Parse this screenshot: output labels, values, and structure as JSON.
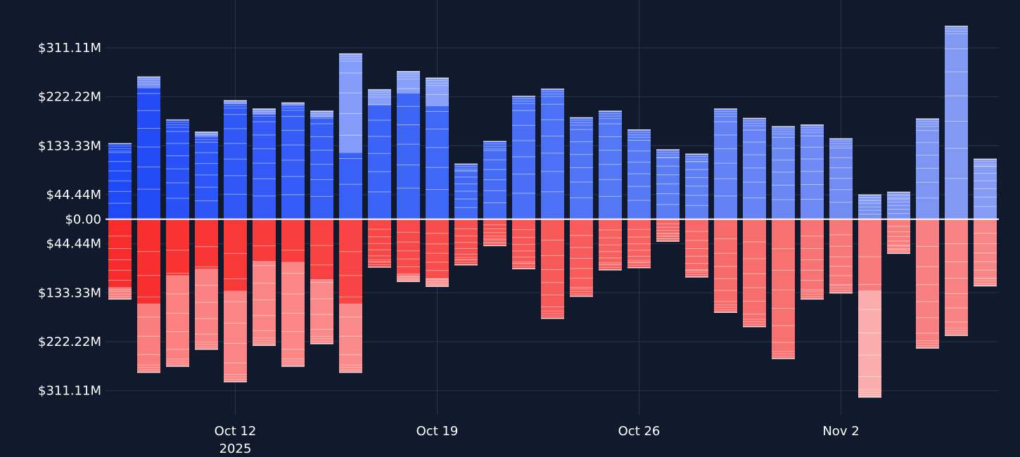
{
  "chart_data": {
    "type": "bar",
    "stacked": true,
    "grid": true,
    "legend": "none",
    "dates": [
      "2025-10-08",
      "2025-10-09",
      "2025-10-10",
      "2025-10-11",
      "2025-10-12",
      "2025-10-13",
      "2025-10-14",
      "2025-10-15",
      "2025-10-16",
      "2025-10-17",
      "2025-10-18",
      "2025-10-19",
      "2025-10-20",
      "2025-10-21",
      "2025-10-22",
      "2025-10-23",
      "2025-10-24",
      "2025-10-25",
      "2025-10-26",
      "2025-10-27",
      "2025-10-28",
      "2025-10-29",
      "2025-10-30",
      "2025-10-31",
      "2025-11-01",
      "2025-11-02",
      "2025-11-03",
      "2025-11-04",
      "2025-11-05",
      "2025-11-06",
      "2025-11-07"
    ],
    "positive_totals_musd": [
      137,
      258,
      180,
      158,
      215,
      200,
      211,
      196,
      300,
      235,
      268,
      256,
      100,
      141,
      223,
      236,
      184,
      196,
      162,
      126,
      118,
      200,
      183,
      168,
      171,
      146,
      44,
      49,
      182,
      350,
      109
    ],
    "negative_totals_musd": [
      -145,
      -278,
      -267,
      -236,
      -295,
      -229,
      -267,
      -226,
      -278,
      -87,
      -113,
      -122,
      -83,
      -48,
      -90,
      -180,
      -140,
      -92,
      -88,
      -40,
      -105,
      -169,
      -195,
      -253,
      -145,
      -134,
      -323,
      -62,
      -234,
      -211,
      -121
    ],
    "positive_colors": [
      "#1f4af5",
      "#244cf6",
      "#2a51f7",
      "#2d55f7",
      "#2f58f7",
      "#3459f7",
      "#365cf7",
      "#375ef7",
      "#3a61f7",
      "#3b63f7",
      "#3d66f7",
      "#4068f6",
      "#436af6",
      "#466cf6",
      "#4a6ff6",
      "#4c71f6",
      "#5074f5",
      "#5477f5",
      "#5879f5",
      "#5c7cf5",
      "#5f7ff5",
      "#6382f5",
      "#6884f4",
      "#6b87f4",
      "#6f8af4",
      "#738cf4",
      "#7790f4",
      "#7b92f4",
      "#7e95f4",
      "#8299f4",
      "#869bf3"
    ],
    "negative_colors": [
      "#f72d2d",
      "#f82f2f",
      "#f93232",
      "#f93636",
      "#f93838",
      "#f83b3b",
      "#f83e3e",
      "#f84141",
      "#f84444",
      "#f84747",
      "#f84a4a",
      "#f84d4d",
      "#f85050",
      "#f85353",
      "#f85656",
      "#f85959",
      "#f85c5c",
      "#f85f5f",
      "#f86262",
      "#f86565",
      "#f86868",
      "#f86b6b",
      "#f86e6e",
      "#f87171",
      "#f87474",
      "#f87777",
      "#f87a7a",
      "#f87d7d",
      "#f88080",
      "#f88383",
      "#f88686"
    ],
    "positive_split_fraction": [
      1,
      0.92,
      1,
      0.95,
      0.97,
      0.95,
      0.98,
      0.94,
      0.4,
      0.88,
      0.85,
      0.8,
      1,
      1,
      1,
      1,
      1,
      1,
      1,
      1,
      1,
      1,
      1,
      1,
      1,
      1,
      1,
      1,
      1,
      1,
      1
    ],
    "negative_split_fraction": [
      0.85,
      0.55,
      0.38,
      0.38,
      0.44,
      0.33,
      0.29,
      0.48,
      0.55,
      1,
      0.9,
      0.88,
      1,
      1,
      1,
      1,
      1,
      1,
      1,
      1,
      1,
      1,
      1,
      1,
      1,
      1,
      0.4,
      1,
      1,
      1,
      1
    ],
    "segments_per_bar": 7,
    "ylim": [
      -355,
      385
    ],
    "yticks": [
      -311.11,
      -222.22,
      -133.33,
      -44.44,
      0,
      44.44,
      133.33,
      222.22,
      311.11
    ],
    "ytick_labels": [
      "$311.11M",
      "$222.22M",
      "$133.33M",
      "$44.44M",
      "$0.00",
      "$44.44M",
      "$133.33M",
      "$222.22M",
      "$311.11M"
    ],
    "xticks": [
      {
        "date": "2025-10-12",
        "label": "Oct 12",
        "sublabel": "2025"
      },
      {
        "date": "2025-10-19",
        "label": "Oct 19",
        "sublabel": ""
      },
      {
        "date": "2025-10-26",
        "label": "Oct 26",
        "sublabel": ""
      },
      {
        "date": "2025-11-02",
        "label": "Nov 2",
        "sublabel": ""
      }
    ],
    "colors": {
      "background": "#111a2c",
      "grid": "#26344f",
      "zero_line": "#ffffff",
      "segment_divider": "#ffffff",
      "positive_light": "#8aa2ff",
      "negative_light": "#ff9a9a"
    }
  }
}
